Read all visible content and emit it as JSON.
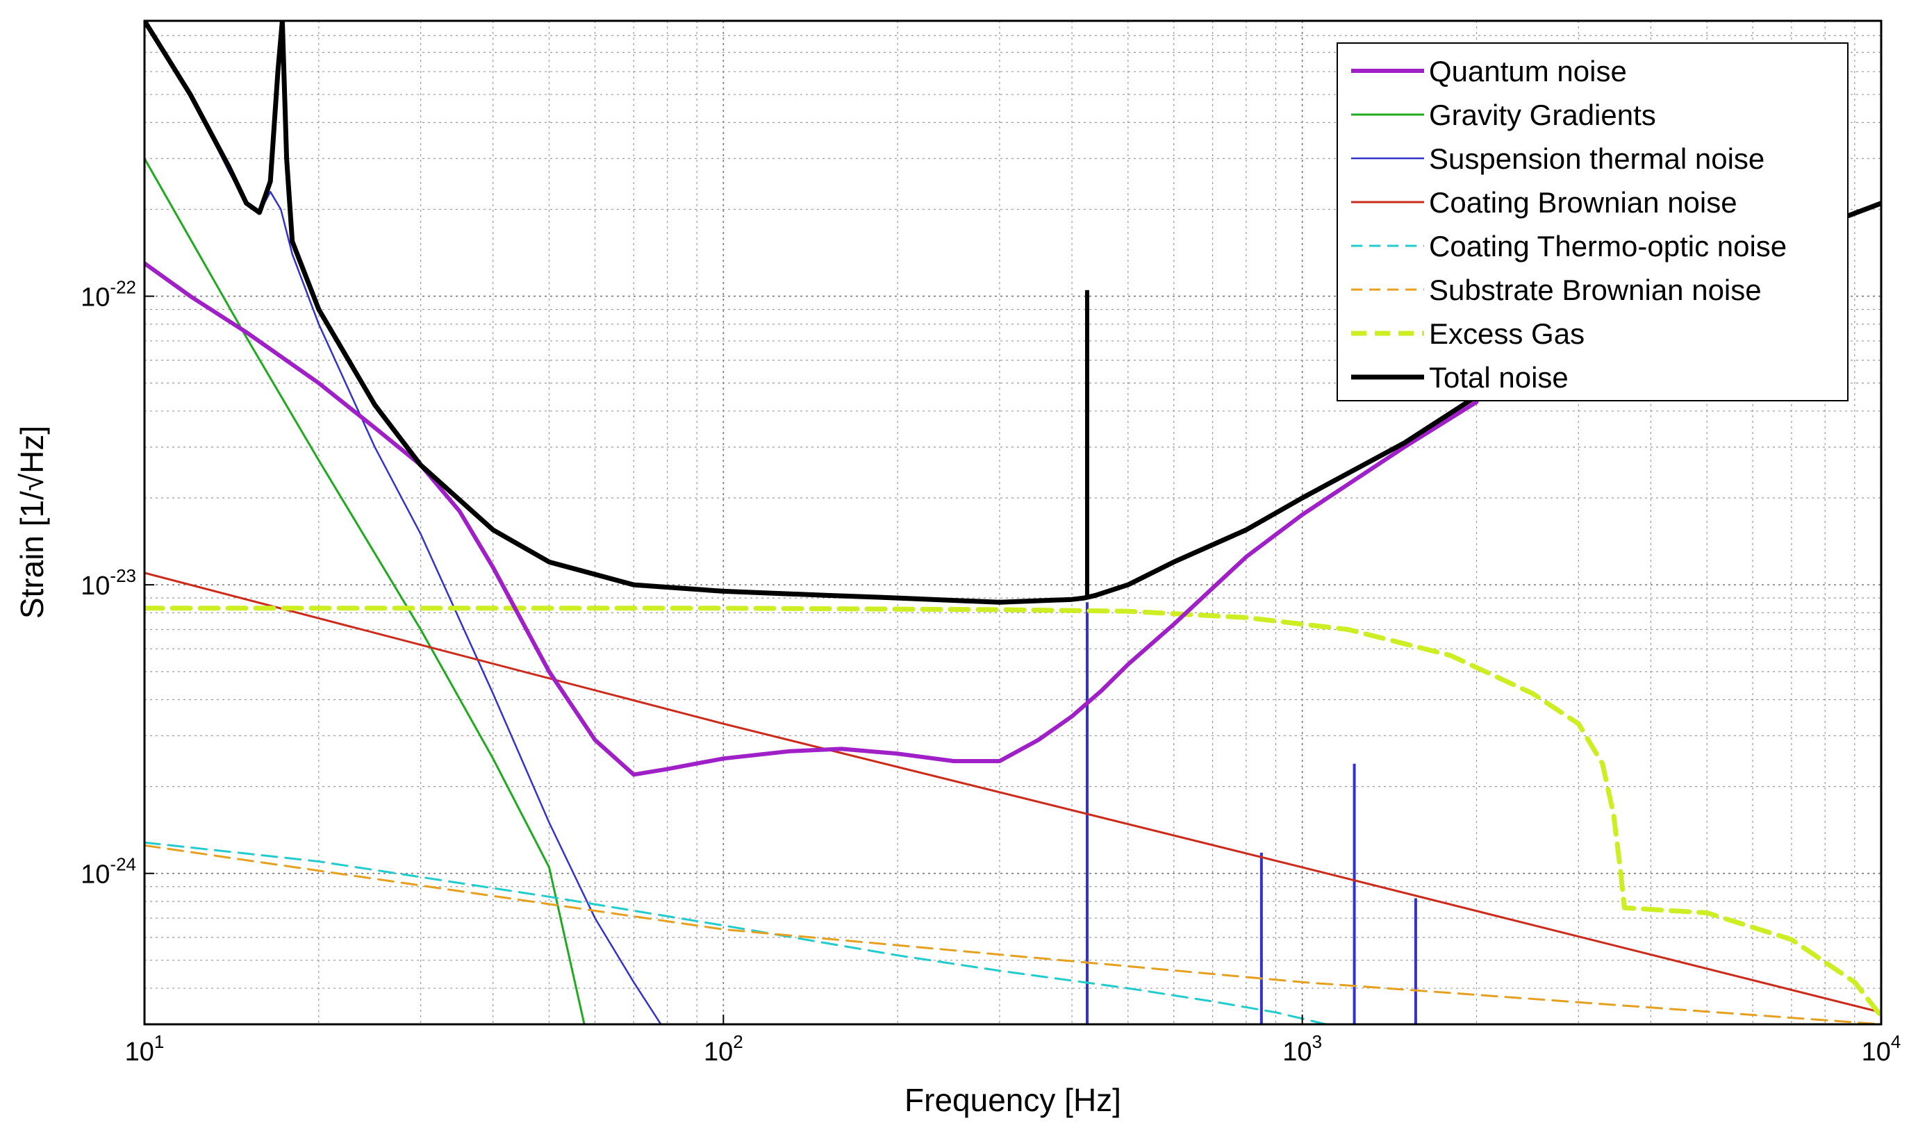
{
  "chart_data": {
    "type": "line",
    "xscale": "log",
    "yscale": "log",
    "xlim": [
      10,
      10000
    ],
    "ylim": [
      3e-25,
      9e-22
    ],
    "xlabel": "Frequency [Hz]",
    "ylabel": "Strain [1/√Hz]",
    "grid": true,
    "legend_position": "top-right",
    "x_ticks": [
      {
        "value": 10,
        "base": "10",
        "exp": "1"
      },
      {
        "value": 100,
        "base": "10",
        "exp": "2"
      },
      {
        "value": 1000,
        "base": "10",
        "exp": "3"
      },
      {
        "value": 10000,
        "base": "10",
        "exp": "4"
      }
    ],
    "y_ticks": [
      {
        "value": 1e-22,
        "base": "10",
        "exp": "-22"
      },
      {
        "value": 1e-23,
        "base": "10",
        "exp": "-23"
      },
      {
        "value": 1e-24,
        "base": "10",
        "exp": "-24"
      }
    ],
    "series": [
      {
        "name": "Quantum noise",
        "color": "#a020c8",
        "width": 6,
        "dash": "solid",
        "x": [
          10,
          12,
          15,
          20,
          25,
          30,
          35,
          40,
          50,
          60,
          70,
          80,
          100,
          130,
          160,
          200,
          250,
          300,
          350,
          400,
          450,
          500,
          600,
          800,
          1000,
          1500,
          2000
        ],
        "y": [
          1.3e-22,
          1e-22,
          7.5e-23,
          5e-23,
          3.5e-23,
          2.6e-23,
          1.8e-23,
          1.15e-23,
          5e-24,
          2.9e-24,
          2.2e-24,
          2.3e-24,
          2.5e-24,
          2.65e-24,
          2.7e-24,
          2.6e-24,
          2.45e-24,
          2.45e-24,
          2.9e-24,
          3.5e-24,
          4.3e-24,
          5.3e-24,
          7.3e-24,
          1.25e-23,
          1.75e-23,
          3e-23,
          4.3e-23
        ]
      },
      {
        "name": "Gravity Gradients",
        "color": "#1faa1f",
        "width": 3,
        "dash": "solid",
        "x": [
          10,
          15,
          20,
          30,
          40,
          50,
          57.5
        ],
        "y": [
          3e-22,
          7.2e-23,
          2.7e-23,
          7e-24,
          2.5e-24,
          1.05e-24,
          3e-25
        ]
      },
      {
        "name": "Suspension thermal noise",
        "color": "#3333cc",
        "width": 2.5,
        "dash": "solid",
        "x": [
          10,
          12,
          14,
          15,
          15.8,
          16.5,
          17.2,
          18,
          20,
          25,
          30,
          40,
          50,
          60,
          70,
          78
        ],
        "y": [
          9e-22,
          5e-22,
          2.7e-22,
          2.1e-22,
          1.95e-22,
          2.3e-22,
          2e-22,
          1.4e-22,
          8e-23,
          3e-23,
          1.5e-23,
          4.2e-24,
          1.5e-24,
          7e-25,
          4.2e-25,
          3e-25
        ]
      },
      {
        "name": "Coating Brownian noise",
        "color": "#cc2a1a",
        "width": 3,
        "dash": "solid",
        "x": [
          10,
          100,
          1000,
          10000
        ],
        "y": [
          1.1e-23,
          3.3e-24,
          1.05e-24,
          3.3e-25
        ]
      },
      {
        "name": "Coating Thermo-optic noise",
        "color": "#22cccc",
        "width": 3,
        "dash": "dashed",
        "x": [
          10,
          20,
          50,
          100,
          200,
          300,
          500,
          700,
          900,
          1100
        ],
        "y": [
          1.28e-24,
          1.1e-24,
          8.3e-25,
          6.6e-25,
          5.2e-25,
          4.6e-25,
          4e-25,
          3.6e-25,
          3.3e-25,
          3e-25
        ]
      },
      {
        "name": "Substrate Brownian noise",
        "color": "#e6a020",
        "width": 3,
        "dash": "dashed",
        "x": [
          10,
          100,
          1000,
          10000
        ],
        "y": [
          1.25e-24,
          6.4e-25,
          4.2e-25,
          3e-25
        ]
      },
      {
        "name": "Excess Gas",
        "color": "#ccee22",
        "width": 7,
        "dash": "dashed",
        "x": [
          10,
          100,
          300,
          500,
          800,
          1200,
          1800,
          2500,
          3000,
          3300,
          3450,
          3550,
          3600,
          5000,
          7000,
          9000,
          10000
        ],
        "y": [
          8.3e-24,
          8.3e-24,
          8.2e-24,
          8.1e-24,
          7.7e-24,
          7e-24,
          5.7e-24,
          4.2e-24,
          3.3e-24,
          2.4e-24,
          1.6e-24,
          1e-24,
          7.6e-25,
          7.3e-25,
          5.9e-25,
          4.2e-25,
          3.2e-25
        ]
      },
      {
        "name": "Total noise",
        "color": "#000000",
        "width": 7,
        "dash": "solid",
        "x": [
          10,
          12,
          14,
          15,
          15.8,
          16.5,
          17,
          17.3,
          17.6,
          18,
          20,
          25,
          30,
          40,
          50,
          70,
          100,
          150,
          200,
          300,
          400,
          420,
          430,
          440,
          500,
          600,
          800,
          1000,
          1500,
          2000,
          3000,
          5000,
          7000,
          10000
        ],
        "y": [
          9e-22,
          5e-22,
          2.8e-22,
          2.1e-22,
          1.95e-22,
          2.5e-22,
          6e-22,
          9e-22,
          3e-22,
          1.55e-22,
          9e-23,
          4.2e-23,
          2.6e-23,
          1.55e-23,
          1.2e-23,
          1e-23,
          9.5e-24,
          9.2e-24,
          9e-24,
          8.7e-24,
          8.9e-24,
          9e-24,
          9.1e-24,
          9.2e-24,
          1e-23,
          1.2e-23,
          1.55e-23,
          2e-23,
          3.1e-23,
          4.5e-23,
          7e-23,
          1.2e-22,
          1.6e-22,
          2.1e-22
        ]
      }
    ],
    "spikes": [
      {
        "series": "Total noise",
        "x": 425,
        "y_from": 9e-24,
        "y_to": 1.05e-22,
        "color": "#000000",
        "width": 6
      },
      {
        "series": "Suspension thermal noise",
        "x": 425,
        "y_from": 3e-25,
        "y_to": 8.7e-24,
        "color": "#3333cc",
        "width": 4
      },
      {
        "series": "Suspension thermal noise",
        "x": 850,
        "y_from": 3e-25,
        "y_to": 1.18e-24,
        "color": "#3333cc",
        "width": 4
      },
      {
        "series": "Suspension thermal noise",
        "x": 1230,
        "y_from": 3e-25,
        "y_to": 2.4e-24,
        "color": "#3333cc",
        "width": 4
      },
      {
        "series": "Suspension thermal noise",
        "x": 1570,
        "y_from": 3e-25,
        "y_to": 8.2e-25,
        "color": "#3333cc",
        "width": 4
      }
    ]
  }
}
